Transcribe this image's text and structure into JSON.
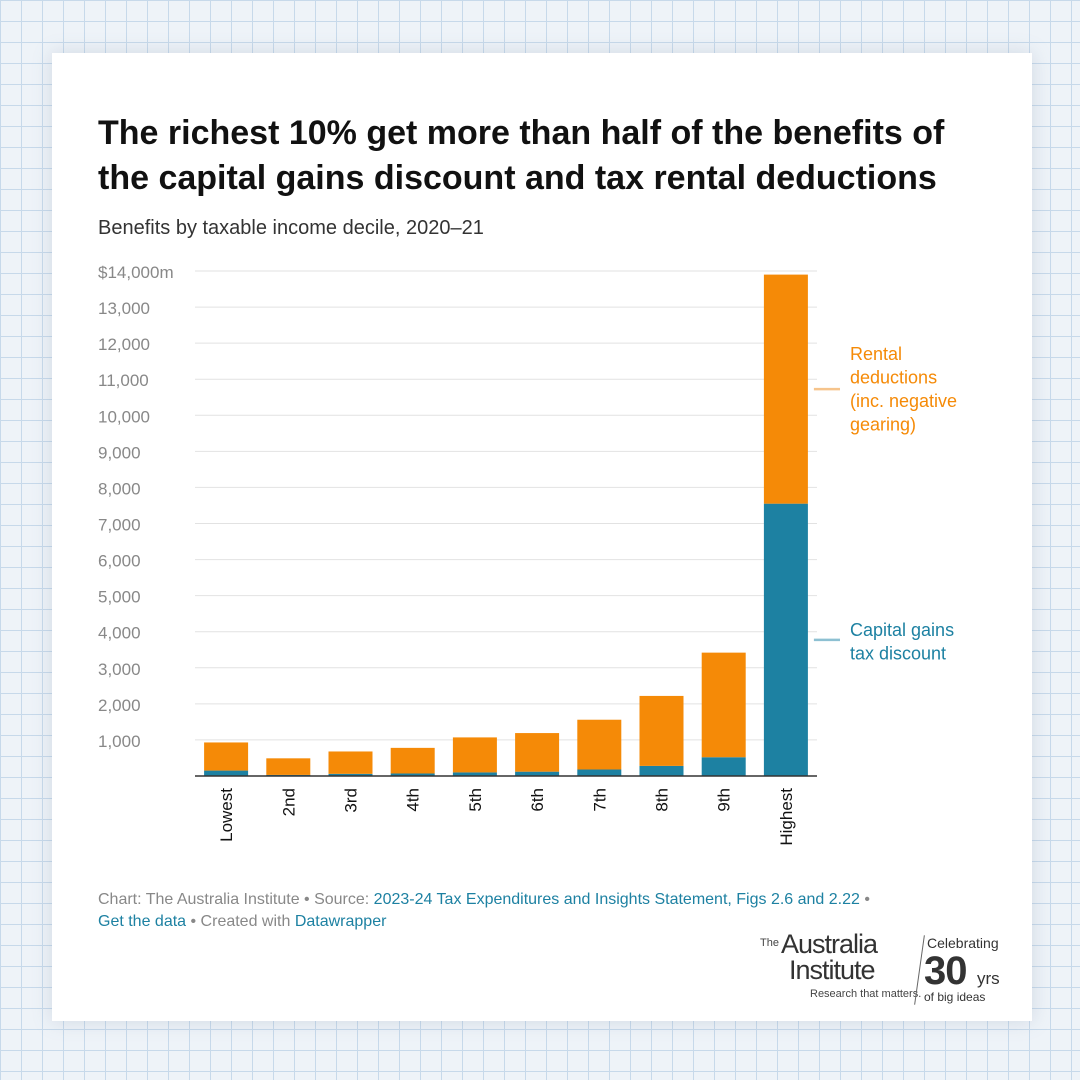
{
  "title": "The richest 10% get more than half of the benefits of the capital gains discount and tax rental deductions",
  "subtitle": "Benefits by taxable income decile, 2020–21",
  "chart_data": {
    "type": "bar",
    "stacked": true,
    "categories": [
      "Lowest",
      "2nd",
      "3rd",
      "4th",
      "5th",
      "6th",
      "7th",
      "8th",
      "9th",
      "Highest"
    ],
    "series": [
      {
        "name": "Capital gains tax discount",
        "label_lines": [
          "Capital gains",
          "tax discount"
        ],
        "color": "#1d81a2",
        "values": [
          150,
          30,
          60,
          70,
          100,
          120,
          180,
          280,
          520,
          7550
        ]
      },
      {
        "name": "Rental deductions (inc. negative gearing)",
        "label_lines": [
          "Rental",
          "deductions",
          "(inc. negative",
          "gearing)"
        ],
        "color": "#f58a07",
        "values": [
          780,
          460,
          620,
          710,
          970,
          1070,
          1380,
          1940,
          2900,
          6350
        ]
      }
    ],
    "ylim": [
      0,
      14000
    ],
    "yticks": [
      1000,
      2000,
      3000,
      4000,
      5000,
      6000,
      7000,
      8000,
      9000,
      10000,
      11000,
      12000,
      13000,
      14000
    ],
    "ytick_labels": [
      "1,000",
      "2,000",
      "3,000",
      "4,000",
      "5,000",
      "6,000",
      "7,000",
      "8,000",
      "9,000",
      "10,000",
      "11,000",
      "12,000",
      "13,000",
      "$14,000m"
    ],
    "grid": true,
    "legend": "direct labels right of highest bar"
  },
  "footer": {
    "credit": "Chart: The Australia Institute • Source: ",
    "source_link": "2023-24 Tax Expenditures and Insights Statement, Figs 2.6 and 2.22",
    "sep1": " •",
    "data_link": "Get the data",
    "created": " • Created with ",
    "tool_link": "Datawrapper"
  },
  "logo": {
    "the": "The",
    "line1": "Australia",
    "line2": "Institute",
    "tagline": "Research that matters.",
    "celebrating": "Celebrating",
    "number": "30",
    "yrs": "yrs",
    "big_ideas": "of big ideas"
  }
}
